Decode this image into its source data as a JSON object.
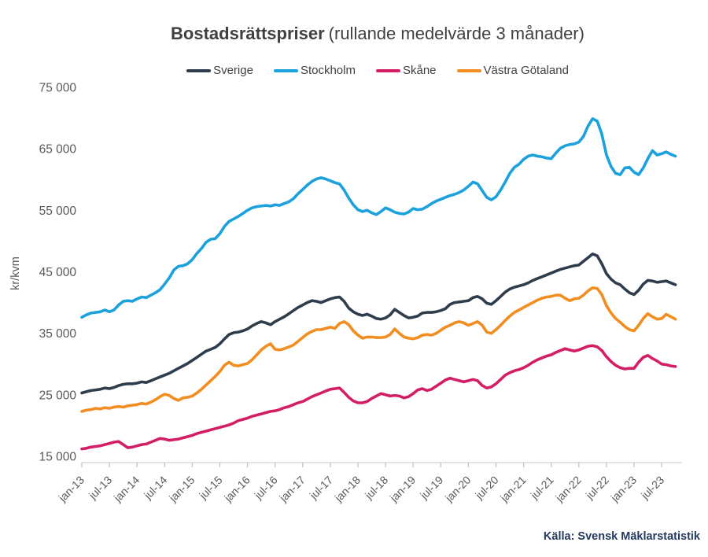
{
  "title": {
    "bold": "Bostadsrättspriser",
    "regular": "(rullande medelvärde 3 månader)"
  },
  "source": "Källa: Svensk Mäklarstatistik",
  "chart_data": {
    "type": "line",
    "title": "Bostadsrättspriser (rullande medelvärde 3 månader)",
    "xlabel": "",
    "ylabel": "kr/kvm",
    "ylim": [
      15000,
      75000
    ],
    "y_ticks": [
      75000,
      65000,
      55000,
      45000,
      35000,
      25000,
      15000
    ],
    "y_tick_labels": [
      "75 000",
      "65 000",
      "55 000",
      "45 000",
      "35 000",
      "25 000",
      "15 000"
    ],
    "x_unit": "months, monthly points from jan-13 through oct-23",
    "x_tick_every_months": 6,
    "x_tick_labels": [
      "jan-13",
      "jul-13",
      "jan-14",
      "jul-14",
      "jan-15",
      "jul-15",
      "jan-16",
      "jul-16",
      "jan-17",
      "jul-17",
      "jan-18",
      "jul-18",
      "jan-19",
      "jul-19",
      "jan-20",
      "jul-20",
      "jan-21",
      "jul-21",
      "jan-22",
      "jul-22",
      "jan-23",
      "jul-23"
    ],
    "grid": false,
    "legend_position": "top",
    "series": [
      {
        "name": "Sverige",
        "color": "#2e3c4b",
        "values": [
          25300,
          25500,
          25700,
          25800,
          25900,
          26100,
          26000,
          26200,
          26500,
          26700,
          26800,
          26800,
          26900,
          27100,
          27000,
          27300,
          27600,
          27900,
          28200,
          28500,
          28900,
          29300,
          29700,
          30100,
          30600,
          31100,
          31600,
          32100,
          32400,
          32700,
          33300,
          34100,
          34800,
          35100,
          35200,
          35400,
          35700,
          36200,
          36600,
          36900,
          36700,
          36400,
          36900,
          37300,
          37700,
          38200,
          38700,
          39200,
          39600,
          40000,
          40300,
          40200,
          40000,
          40300,
          40600,
          40800,
          40900,
          40200,
          39100,
          38500,
          38100,
          37900,
          38100,
          37800,
          37400,
          37300,
          37500,
          38000,
          38900,
          38400,
          37900,
          37500,
          37600,
          37800,
          38300,
          38400,
          38400,
          38500,
          38700,
          39000,
          39700,
          40000,
          40100,
          40200,
          40300,
          40800,
          41000,
          40600,
          39900,
          39700,
          40300,
          41000,
          41700,
          42200,
          42500,
          42700,
          42900,
          43200,
          43600,
          43900,
          44200,
          44500,
          44800,
          45100,
          45400,
          45600,
          45800,
          46000,
          46100,
          46700,
          47300,
          47900,
          47600,
          46300,
          44700,
          43800,
          43200,
          42900,
          42200,
          41600,
          41300,
          42000,
          43000,
          43600,
          43500,
          43300,
          43400,
          43500,
          43200,
          42900
        ]
      },
      {
        "name": "Stockholm",
        "color": "#1ba1dc",
        "values": [
          37600,
          38000,
          38300,
          38400,
          38500,
          38800,
          38500,
          38800,
          39600,
          40200,
          40300,
          40200,
          40600,
          40900,
          40800,
          41200,
          41600,
          42100,
          43000,
          44000,
          45300,
          45900,
          46000,
          46300,
          47000,
          48000,
          48800,
          49800,
          50300,
          50400,
          51200,
          52400,
          53200,
          53600,
          54000,
          54500,
          55000,
          55400,
          55600,
          55700,
          55800,
          55700,
          55900,
          55800,
          56100,
          56400,
          56900,
          57700,
          58400,
          59100,
          59700,
          60100,
          60300,
          60100,
          59800,
          59500,
          59300,
          58300,
          57000,
          55900,
          55100,
          54800,
          55000,
          54600,
          54300,
          54800,
          55400,
          55100,
          54700,
          54500,
          54400,
          54700,
          55300,
          55100,
          55200,
          55600,
          56100,
          56500,
          56800,
          57100,
          57400,
          57600,
          57900,
          58300,
          58900,
          59600,
          59300,
          58200,
          57100,
          56700,
          57200,
          58300,
          59600,
          61000,
          62000,
          62500,
          63300,
          63800,
          64000,
          63800,
          63700,
          63500,
          63400,
          64300,
          65100,
          65500,
          65700,
          65800,
          66100,
          67000,
          68700,
          69900,
          69500,
          67400,
          64000,
          62100,
          61000,
          60800,
          61900,
          62000,
          61200,
          60800,
          61900,
          63400,
          64700,
          64000,
          64200,
          64500,
          64100,
          63800
        ]
      },
      {
        "name": "Skåne",
        "color": "#d31e66",
        "values": [
          16200,
          16300,
          16500,
          16600,
          16700,
          16900,
          17100,
          17300,
          17400,
          16900,
          16400,
          16500,
          16700,
          16900,
          17000,
          17300,
          17600,
          17900,
          17800,
          17600,
          17700,
          17800,
          18000,
          18200,
          18400,
          18700,
          18900,
          19100,
          19300,
          19500,
          19700,
          19900,
          20100,
          20400,
          20800,
          21000,
          21200,
          21500,
          21700,
          21900,
          22100,
          22300,
          22400,
          22600,
          22900,
          23100,
          23400,
          23700,
          23900,
          24300,
          24700,
          25000,
          25300,
          25600,
          25900,
          26000,
          26100,
          25400,
          24600,
          24000,
          23700,
          23700,
          23900,
          24400,
          24800,
          25200,
          25000,
          24800,
          24900,
          24800,
          24500,
          24700,
          25200,
          25800,
          26000,
          25700,
          25900,
          26400,
          26900,
          27400,
          27700,
          27500,
          27300,
          27100,
          27300,
          27500,
          27300,
          26500,
          26100,
          26300,
          26800,
          27500,
          28200,
          28600,
          28900,
          29100,
          29400,
          29800,
          30300,
          30700,
          31000,
          31300,
          31500,
          31900,
          32200,
          32500,
          32300,
          32100,
          32300,
          32600,
          32900,
          33000,
          32800,
          32200,
          31200,
          30400,
          29800,
          29400,
          29200,
          29300,
          29300,
          30300,
          31100,
          31400,
          30900,
          30500,
          30000,
          29900,
          29700,
          29600
        ]
      },
      {
        "name": "Västra Götaland",
        "color": "#f28d20",
        "values": [
          22300,
          22500,
          22600,
          22800,
          22700,
          22900,
          22800,
          23000,
          23100,
          23000,
          23200,
          23300,
          23400,
          23600,
          23500,
          23800,
          24200,
          24700,
          25100,
          24900,
          24400,
          24100,
          24500,
          24600,
          24800,
          25300,
          25900,
          26600,
          27300,
          28000,
          28800,
          29800,
          30300,
          29800,
          29700,
          29900,
          30100,
          30700,
          31500,
          32300,
          32900,
          33300,
          32400,
          32300,
          32500,
          32800,
          33100,
          33700,
          34300,
          34900,
          35300,
          35600,
          35600,
          35800,
          36000,
          35800,
          36600,
          36900,
          36400,
          35400,
          34700,
          34200,
          34400,
          34400,
          34300,
          34300,
          34400,
          34800,
          35700,
          35000,
          34400,
          34200,
          34100,
          34300,
          34700,
          34800,
          34700,
          35000,
          35500,
          36000,
          36300,
          36700,
          36900,
          36700,
          36300,
          36600,
          36900,
          36300,
          35200,
          35000,
          35600,
          36300,
          37100,
          37800,
          38400,
          38800,
          39200,
          39600,
          40000,
          40400,
          40700,
          40900,
          41000,
          41200,
          41200,
          40700,
          40300,
          40600,
          40700,
          41200,
          41900,
          42400,
          42300,
          41300,
          39500,
          38300,
          37400,
          36800,
          36100,
          35600,
          35400,
          36300,
          37400,
          38200,
          37700,
          37300,
          37400,
          38100,
          37700,
          37300
        ]
      }
    ]
  }
}
